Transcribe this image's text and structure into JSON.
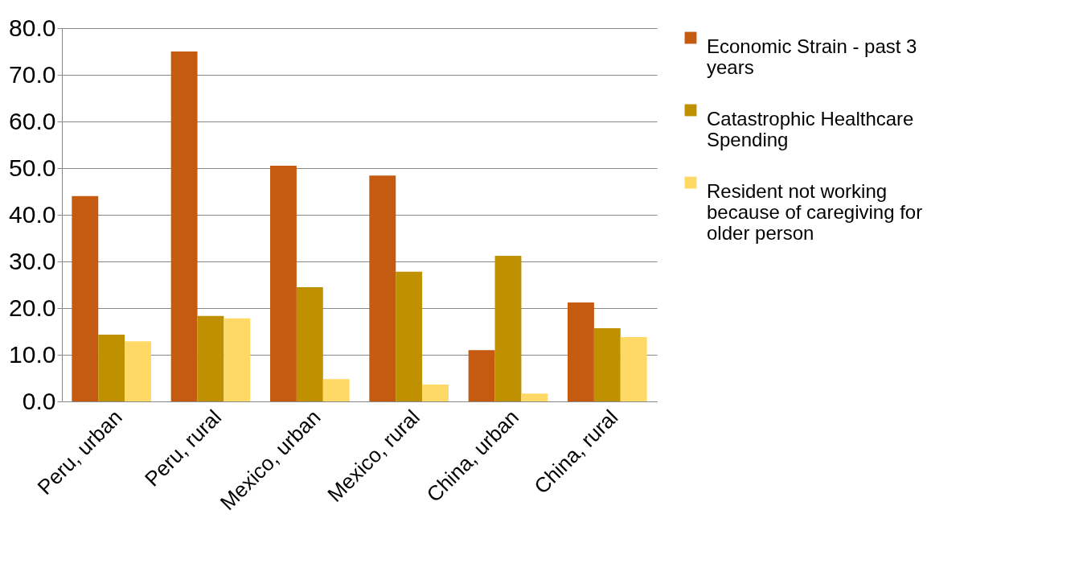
{
  "chart_data": {
    "type": "bar",
    "categories": [
      "Peru, urban",
      "Peru, rural",
      "Mexico, urban",
      "Mexico, rural",
      "China, urban",
      "China, rural"
    ],
    "series": [
      {
        "name": "Economic Strain - past 3 years",
        "color": "#c55a11",
        "values": [
          44.0,
          75.0,
          50.5,
          48.4,
          11.0,
          21.2
        ]
      },
      {
        "name": "Catastrophic Healthcare Spending",
        "color": "#bf9000",
        "values": [
          14.3,
          18.3,
          24.5,
          27.8,
          31.2,
          15.7
        ]
      },
      {
        "name": "Resident not working because of caregiving for older person",
        "color": "#ffd966",
        "values": [
          12.9,
          17.8,
          4.8,
          3.6,
          1.7,
          13.8
        ]
      }
    ],
    "ylim": [
      0,
      80
    ],
    "yticks": [
      {
        "value": 0,
        "label": "0.0"
      },
      {
        "value": 10,
        "label": "10.0"
      },
      {
        "value": 20,
        "label": "20.0"
      },
      {
        "value": 30,
        "label": "30.0"
      },
      {
        "value": 40,
        "label": "40.0"
      },
      {
        "value": 50,
        "label": "50.0"
      },
      {
        "value": 60,
        "label": "60.0"
      },
      {
        "value": 70,
        "label": "70.0"
      },
      {
        "value": 80,
        "label": "80.0"
      }
    ],
    "grid": "y",
    "legend": "right"
  }
}
